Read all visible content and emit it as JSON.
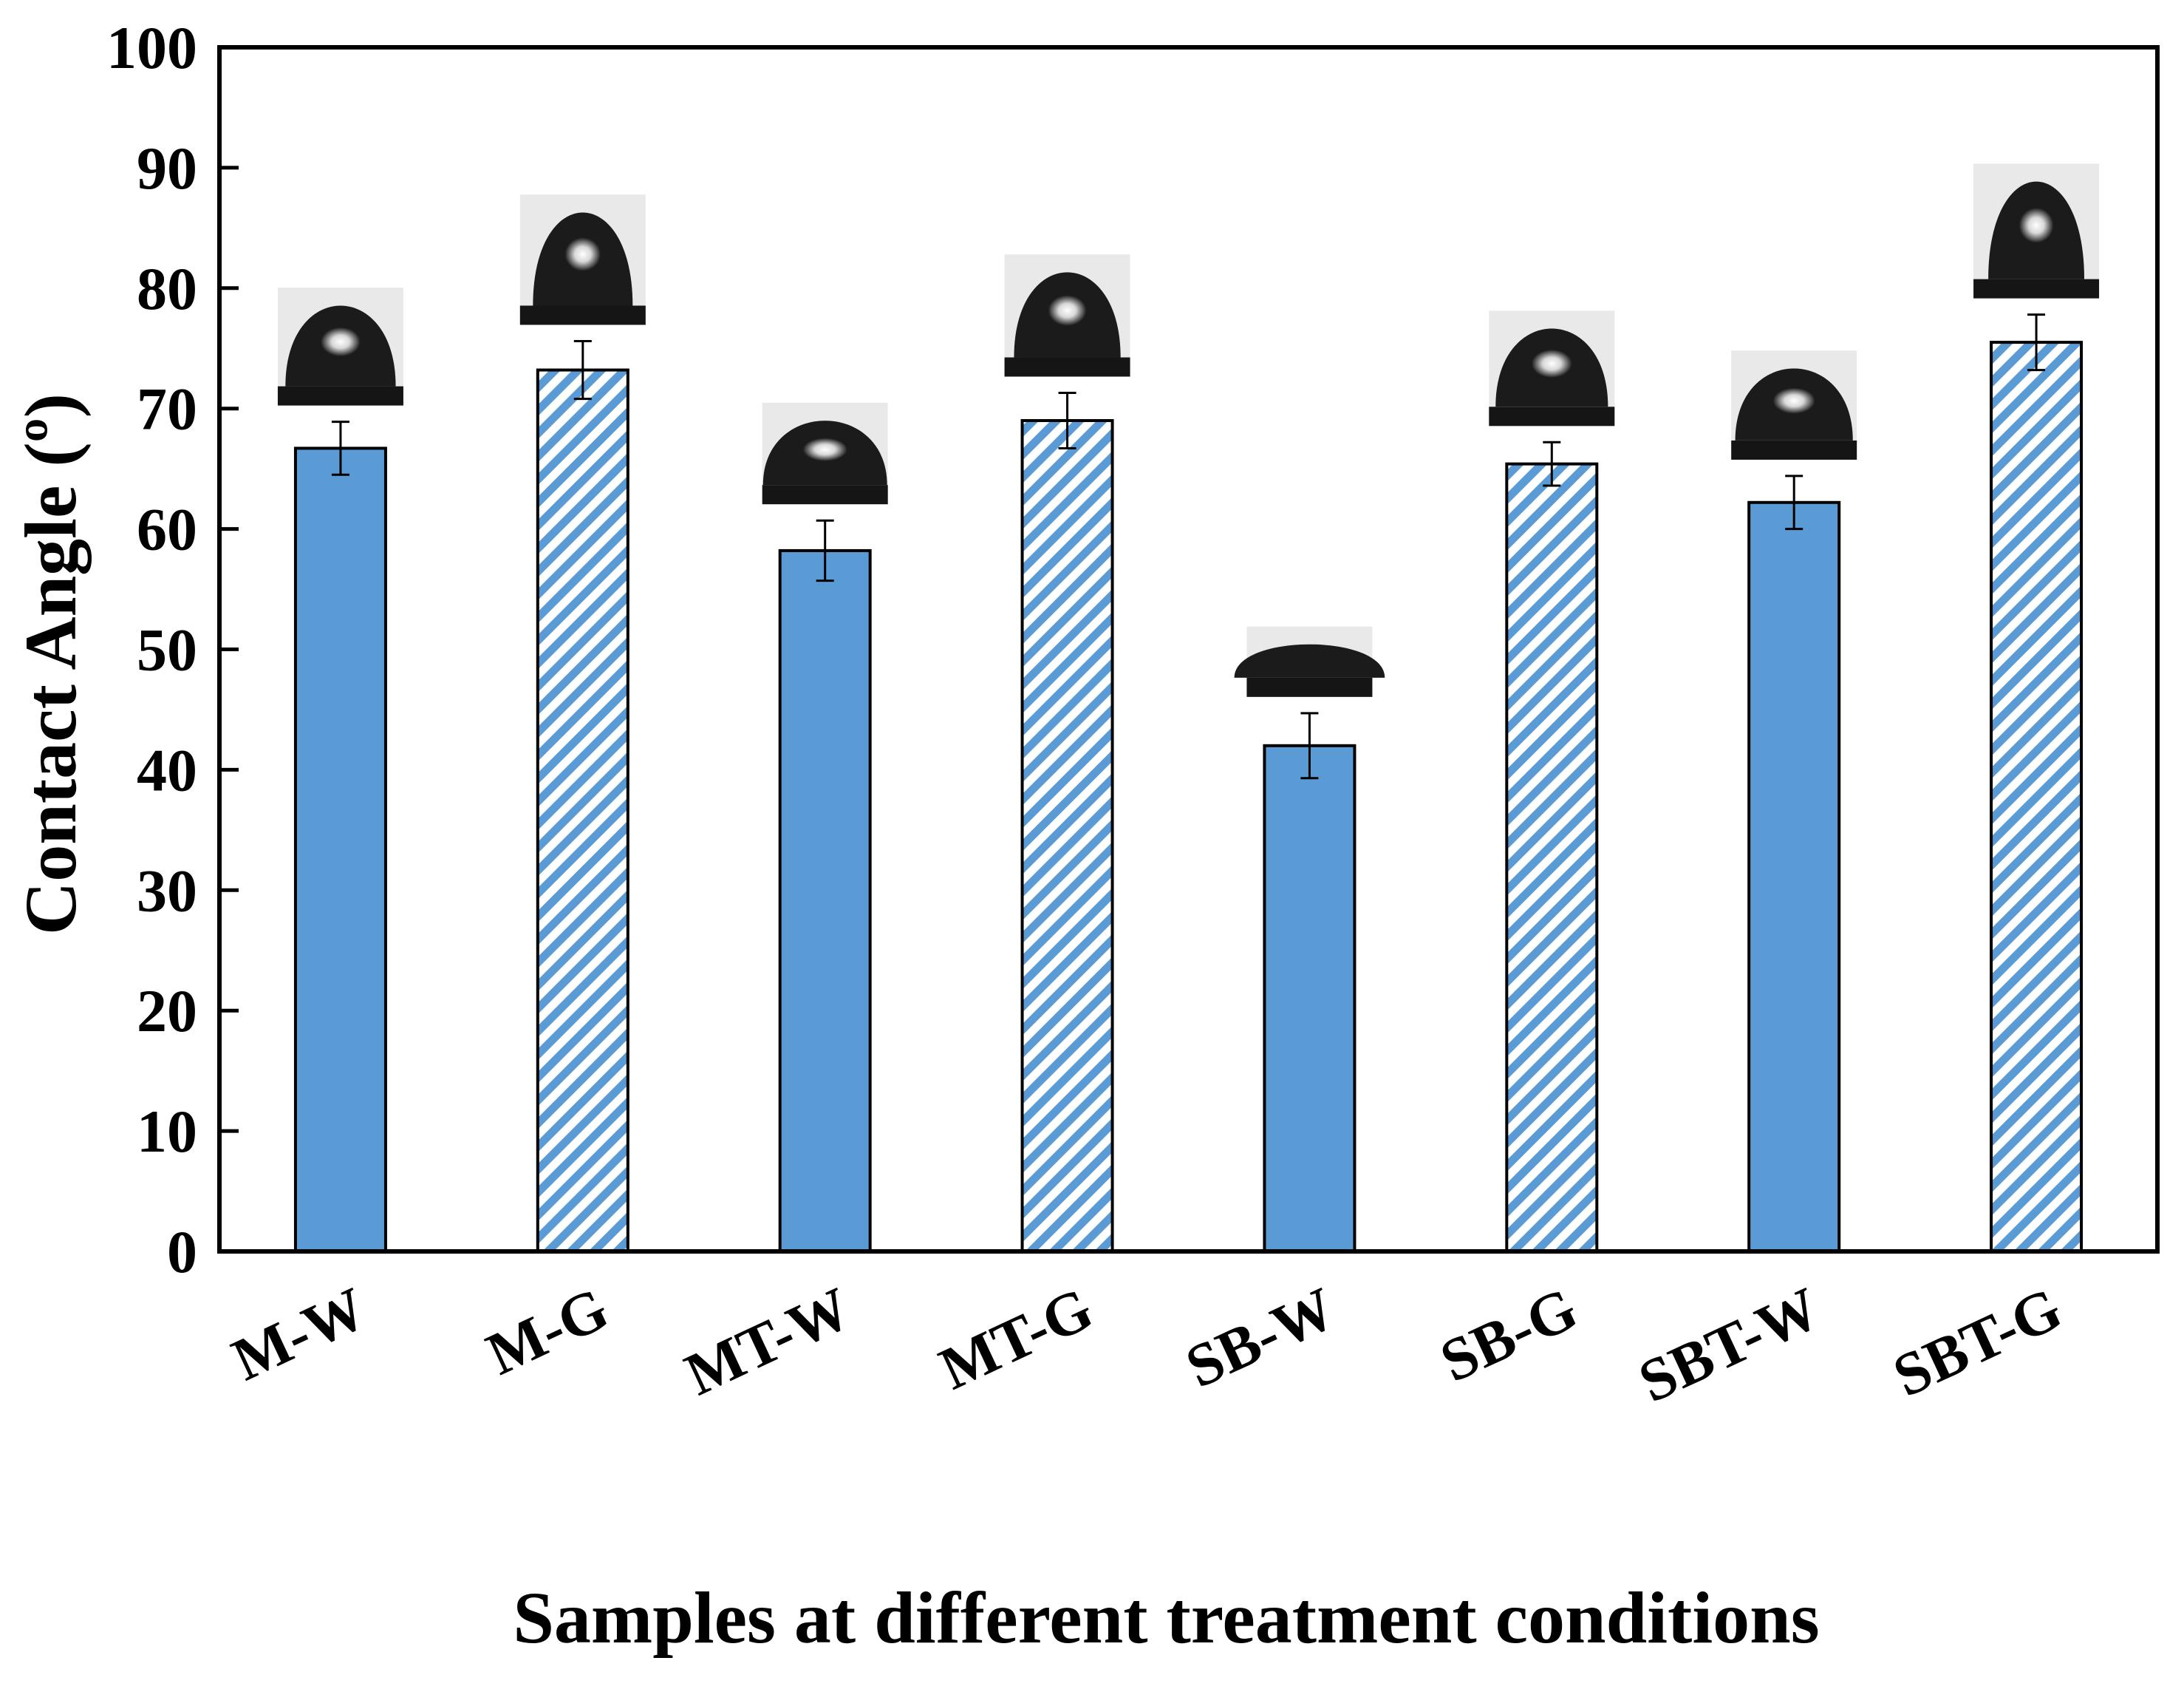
{
  "chart_data": {
    "type": "bar",
    "categories": [
      "M-W",
      "M-G",
      "MT-W",
      "MT-G",
      "SB-W",
      "SB-G",
      "SBT-W",
      "SBT-G"
    ],
    "values": [
      66.7,
      73.2,
      58.2,
      69.0,
      42.0,
      65.4,
      62.2,
      75.5
    ],
    "errors": [
      2.2,
      2.4,
      2.5,
      2.3,
      2.7,
      1.8,
      2.2,
      2.3
    ],
    "fill_styles": [
      "solid",
      "hatched",
      "solid",
      "hatched",
      "solid",
      "hatched",
      "solid",
      "hatched"
    ],
    "xlabel": "Samples at different treatment conditions",
    "ylabel": "Contact Angle (º)",
    "ylim": [
      0,
      100
    ],
    "yticks": [
      0,
      10,
      20,
      30,
      40,
      50,
      60,
      70,
      80,
      90,
      100
    ],
    "grid": false,
    "colors": {
      "bar": "#5B9BD5",
      "hatch_bg": "#ffffff",
      "axis": "#000000"
    },
    "insets": "droplet photographs above each bar"
  }
}
